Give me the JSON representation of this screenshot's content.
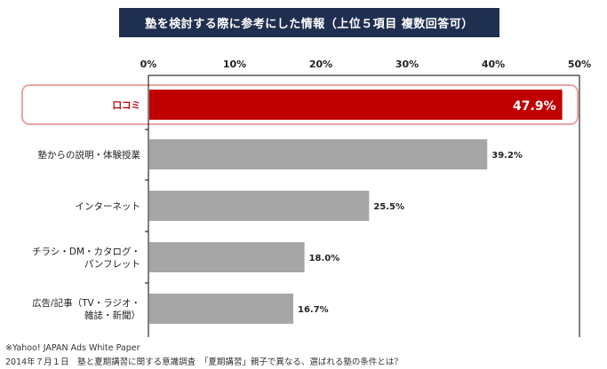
{
  "title": "塾を検討する際に参考にした情報（上位５項目 複数回答可）",
  "source_lines": [
    "※Yahoo! JAPAN Ads White Paper",
    "2014年７月１日　塾と夏期講習に関する意識調査　「夏期講習」親子で異なる、選ばれる塾の条件とは？"
  ],
  "colors": {
    "highlight": "#c00000",
    "bar": "#a6a6a6",
    "banner": "#1f2f4f",
    "outline": "#e8a5a5"
  },
  "chart_data": {
    "type": "bar",
    "orientation": "horizontal",
    "title": "塾を検討する際に参考にした情報（上位５項目 複数回答可）",
    "categories": [
      [
        "口コミ"
      ],
      [
        "塾からの説明・体験授業"
      ],
      [
        "インターネット"
      ],
      [
        "チラシ・DM・カタログ・",
        "パンフレット"
      ],
      [
        "広告/記事（TV・ラジオ・",
        "雑誌・新聞）"
      ]
    ],
    "values": [
      47.9,
      39.2,
      25.5,
      18.0,
      16.7
    ],
    "value_labels": [
      "47.9%",
      "39.2%",
      "25.5%",
      "18.0%",
      "16.7%"
    ],
    "x_ticks": [
      "0%",
      "10%",
      "20%",
      "30%",
      "40%",
      "50%"
    ],
    "xlim": [
      0,
      50
    ],
    "highlight_index": 0,
    "axis_position": "top",
    "grid": false
  }
}
